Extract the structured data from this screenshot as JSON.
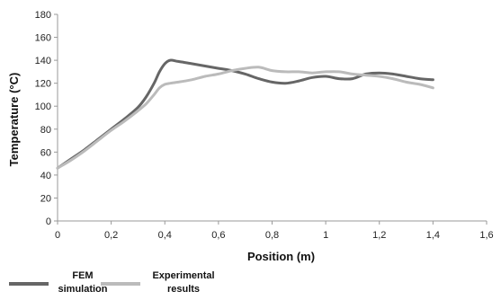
{
  "chart_data": {
    "type": "line",
    "title": "",
    "xlabel": "Position (m)",
    "ylabel": "Temperature (°C)",
    "xlim": [
      0,
      1.6
    ],
    "ylim": [
      0,
      180
    ],
    "x_ticks": [
      "0",
      "0,2",
      "0,4",
      "0,6",
      "0,8",
      "1",
      "1,2",
      "1,4",
      "1,6"
    ],
    "y_ticks": [
      "0",
      "20",
      "40",
      "60",
      "80",
      "100",
      "120",
      "140",
      "160",
      "180"
    ],
    "grid": false,
    "legend_position": "bottom-left",
    "series": [
      {
        "name": "FEM simulation",
        "color": "#666666",
        "x": [
          0,
          0.05,
          0.1,
          0.15,
          0.2,
          0.25,
          0.3,
          0.33,
          0.36,
          0.38,
          0.4,
          0.42,
          0.45,
          0.5,
          0.55,
          0.6,
          0.65,
          0.7,
          0.75,
          0.8,
          0.85,
          0.9,
          0.95,
          1.0,
          1.05,
          1.1,
          1.15,
          1.2,
          1.25,
          1.3,
          1.35,
          1.4
        ],
        "y": [
          46,
          54,
          62,
          71,
          80,
          89,
          99,
          108,
          120,
          130,
          137,
          140,
          139,
          137,
          135,
          133,
          131,
          128,
          124,
          121,
          120,
          122,
          125,
          126,
          124,
          124,
          128,
          129,
          128,
          126,
          124,
          123
        ]
      },
      {
        "name": "Experimental results",
        "color": "#bbbbbb",
        "x": [
          0,
          0.05,
          0.1,
          0.15,
          0.2,
          0.25,
          0.3,
          0.33,
          0.36,
          0.38,
          0.4,
          0.42,
          0.45,
          0.5,
          0.55,
          0.6,
          0.65,
          0.7,
          0.75,
          0.8,
          0.85,
          0.9,
          0.95,
          1.0,
          1.05,
          1.1,
          1.15,
          1.2,
          1.25,
          1.3,
          1.35,
          1.4
        ],
        "y": [
          46,
          53,
          61,
          70,
          79,
          87,
          96,
          102,
          110,
          116,
          119,
          120,
          121,
          123,
          126,
          128,
          131,
          133,
          134,
          131,
          130,
          130,
          129,
          130,
          130,
          128,
          127,
          126,
          124,
          121,
          119,
          116
        ]
      }
    ]
  },
  "legend": {
    "items": [
      {
        "label": "FEM\nsimulation",
        "color": "#666666"
      },
      {
        "label": "Experimental\nresults",
        "color": "#bbbbbb"
      }
    ]
  }
}
